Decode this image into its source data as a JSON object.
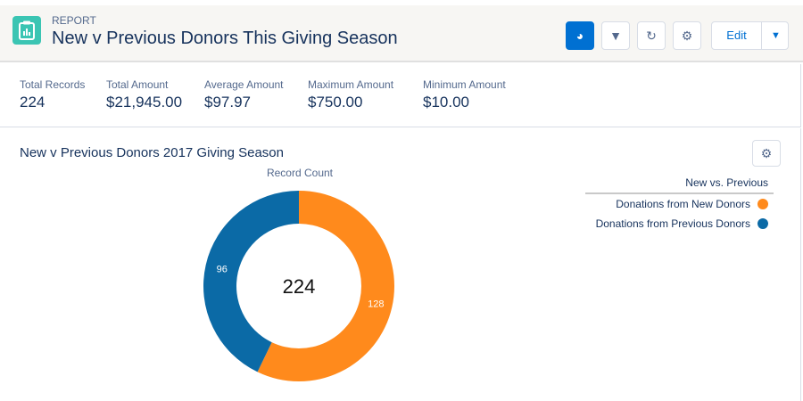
{
  "header": {
    "eyebrow": "REPORT",
    "title": "New v Previous Donors This Giving Season",
    "edit_label": "Edit",
    "icons": [
      "report-icon",
      "chart-icon",
      "filter-icon",
      "refresh-icon",
      "gear-icon",
      "chevron-down-icon"
    ]
  },
  "stats": [
    {
      "label": "Total Records",
      "value": "224"
    },
    {
      "label": "Total Amount",
      "value": "$21,945.00"
    },
    {
      "label": "Average Amount",
      "value": "$97.97"
    },
    {
      "label": "Maximum Amount",
      "value": "$750.00"
    },
    {
      "label": "Minimum Amount",
      "value": "$10.00"
    }
  ],
  "chart_data": {
    "type": "pie",
    "variant": "donut",
    "title": "New v Previous Donors 2017 Giving Season",
    "measure_label": "Record Count",
    "center_label": "224",
    "legend_title": "New vs. Previous",
    "legend_position": "top-right",
    "categories": [
      "Donations from New Donors",
      "Donations from Previous Donors"
    ],
    "values": [
      128,
      96
    ],
    "colors": [
      "#ff8a1c",
      "#0b6aa6"
    ]
  }
}
